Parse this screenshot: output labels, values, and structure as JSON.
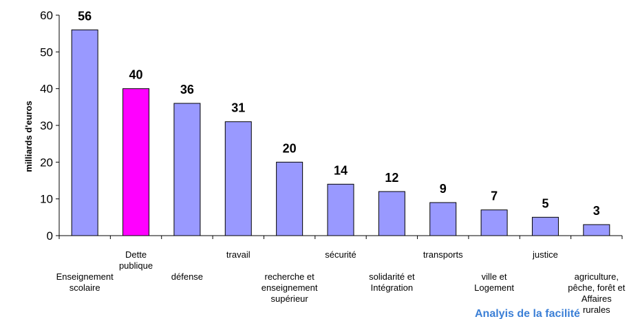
{
  "chart_data": {
    "type": "bar",
    "ylabel": "milliards d'euros",
    "ylim": [
      0,
      60
    ],
    "yticks": [
      0,
      10,
      20,
      30,
      40,
      50,
      60
    ],
    "grid": false,
    "categories": [
      [
        "Enseignement",
        "scolaire"
      ],
      [
        "Dette",
        "publique"
      ],
      [
        "défense"
      ],
      [
        "travail"
      ],
      [
        "recherche et",
        "enseignement",
        "supérieur"
      ],
      [
        "sécurité"
      ],
      [
        "solidarité et",
        "Intégration"
      ],
      [
        "transports"
      ],
      [
        "ville et",
        "Logement"
      ],
      [
        "justice"
      ],
      [
        "agriculture,",
        "pêche, forêt et",
        "Affaires",
        "rurales"
      ]
    ],
    "values": [
      56,
      40,
      36,
      31,
      20,
      14,
      12,
      9,
      7,
      5,
      3
    ],
    "value_labels": [
      "56",
      "40",
      "36",
      "31",
      "20",
      "14",
      "12",
      "9",
      "7",
      "5",
      "3"
    ],
    "colors": [
      "#9999ff",
      "#ff00ff",
      "#9999ff",
      "#9999ff",
      "#9999ff",
      "#9999ff",
      "#9999ff",
      "#9999ff",
      "#9999ff",
      "#9999ff",
      "#9999ff"
    ],
    "highlight_color": "#ff00ff",
    "bar_color": "#9999ff"
  },
  "footer_text": "Analyis de la facilité"
}
